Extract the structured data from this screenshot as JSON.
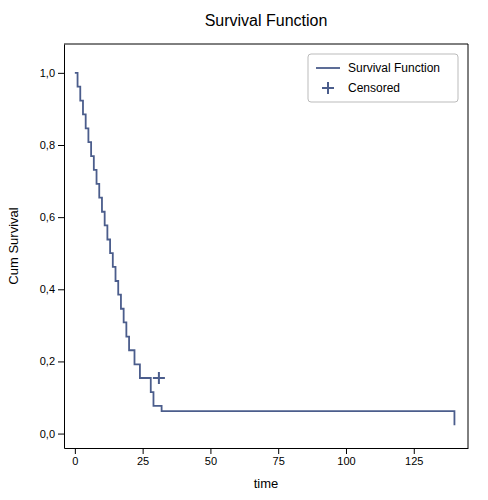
{
  "chart_data": {
    "type": "line",
    "title": "Survival Function",
    "xlabel": "time",
    "ylabel": "Cum Survival",
    "xlim": [
      -4,
      145
    ],
    "ylim": [
      -0.04,
      1.08
    ],
    "xticks": [
      0,
      25,
      50,
      75,
      100,
      125
    ],
    "yticks": [
      {
        "value": 0.0,
        "label": "0,0"
      },
      {
        "value": 0.2,
        "label": "0,2"
      },
      {
        "value": 0.4,
        "label": "0,4"
      },
      {
        "value": 0.6,
        "label": "0,6"
      },
      {
        "value": 0.8,
        "label": "0,8"
      },
      {
        "value": 1.0,
        "label": "1,0"
      }
    ],
    "grid": false,
    "legend": "upper right",
    "series": [
      {
        "name": "Survival Function",
        "type": "step",
        "color": "#4b5d8c",
        "x": [
          0,
          1,
          2,
          3,
          4,
          5,
          6,
          7,
          8,
          9,
          10,
          11,
          12,
          13,
          14,
          15,
          16,
          17,
          18,
          19,
          20,
          22,
          24,
          26,
          28,
          29,
          30,
          32,
          35,
          40,
          140
        ],
        "values": [
          1.0,
          0.962,
          0.923,
          0.885,
          0.846,
          0.808,
          0.769,
          0.731,
          0.692,
          0.654,
          0.615,
          0.577,
          0.538,
          0.5,
          0.462,
          0.423,
          0.385,
          0.346,
          0.308,
          0.269,
          0.231,
          0.192,
          0.154,
          0.154,
          0.115,
          0.077,
          0.077,
          0.062,
          0.062,
          0.062,
          0.023
        ]
      },
      {
        "name": "Censored",
        "type": "scatter",
        "marker": "plus",
        "color": "#4b5d8c",
        "x": [
          31
        ],
        "values": [
          0.154
        ]
      }
    ]
  }
}
